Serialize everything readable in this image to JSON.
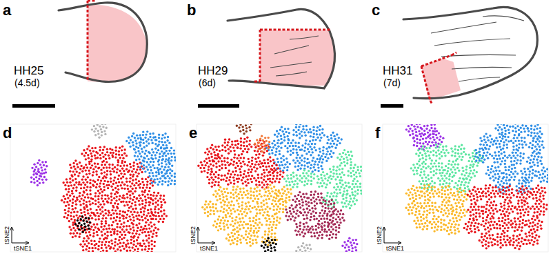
{
  "panels": [
    {
      "label": "a",
      "stage": "HH25",
      "age": "(4.5d)"
    },
    {
      "label": "b",
      "stage": "HH29",
      "age": "(6d)"
    },
    {
      "label": "c",
      "stage": "HH31",
      "age": "(7d)"
    }
  ],
  "chart_data": [
    {
      "type": "scatter",
      "title": "d",
      "x_label": "tSNE1",
      "y_label": "tSNE2",
      "xlim": [
        0,
        100
      ],
      "ylim": [
        0,
        100
      ],
      "tick_labels": false,
      "grid": false,
      "series": [
        {
          "color": "#e8161c",
          "x": [
            48,
            57,
            66,
            40,
            49,
            58,
            67,
            76,
            37,
            46,
            55,
            64,
            73,
            82,
            36,
            45,
            54,
            63,
            72,
            81,
            89,
            37,
            46,
            55,
            64,
            73,
            82,
            90,
            40,
            49,
            58,
            67,
            76,
            85,
            47,
            56,
            65,
            74,
            83
          ],
          "y": [
            77,
            77,
            77,
            65,
            65,
            65,
            65,
            65,
            53,
            53,
            53,
            53,
            53,
            53,
            41,
            41,
            41,
            41,
            41,
            41,
            41,
            29,
            29,
            29,
            29,
            29,
            29,
            29,
            17,
            17,
            17,
            17,
            17,
            17,
            5,
            5,
            5,
            5,
            5
          ]
        },
        {
          "color": "#2f8fe6",
          "x": [
            75,
            83,
            92,
            79,
            89,
            97,
            83,
            93,
            89,
            97
          ],
          "y": [
            87,
            89,
            87,
            77,
            77,
            76,
            68,
            67,
            58,
            58
          ]
        },
        {
          "color": "#b3b3b3",
          "x": [
            54
          ],
          "y": [
            96
          ]
        },
        {
          "color": "#9b30e6",
          "x": [
            18,
            17
          ],
          "y": [
            66,
            58
          ]
        },
        {
          "color": "#000000",
          "x": [
            44
          ],
          "y": [
            22
          ]
        }
      ]
    },
    {
      "type": "scatter",
      "title": "e",
      "x_label": "tSNE1",
      "y_label": "tSNE2",
      "xlim": [
        0,
        100
      ],
      "ylim": [
        0,
        100
      ],
      "tick_labels": false,
      "grid": false,
      "series": [
        {
          "color": "#2f8fe6",
          "x": [
            52,
            63,
            73,
            83,
            47,
            58,
            68,
            78,
            52,
            63,
            72
          ],
          "y": [
            92,
            95,
            93,
            87,
            81,
            82,
            82,
            77,
            69,
            70,
            68
          ]
        },
        {
          "color": "#5ee6a2",
          "x": [
            90,
            96,
            85,
            77,
            88,
            97,
            81,
            92,
            58,
            67
          ],
          "y": [
            74,
            63,
            62,
            56,
            50,
            50,
            41,
            40,
            56,
            58
          ]
        },
        {
          "color": "#e8161c",
          "x": [
            10,
            20,
            29,
            39,
            6,
            15,
            25,
            35,
            44,
            11,
            21,
            30,
            40,
            48
          ],
          "y": [
            78,
            83,
            84,
            81,
            67,
            70,
            71,
            69,
            68,
            57,
            58,
            58,
            56,
            60
          ]
        },
        {
          "color": "#fbb829",
          "x": [
            15,
            25,
            35,
            45,
            53,
            8,
            19,
            29,
            40,
            50,
            15,
            25,
            35,
            46,
            23,
            33,
            44
          ],
          "y": [
            45,
            46,
            45,
            46,
            45,
            34,
            34,
            34,
            34,
            36,
            22,
            22,
            22,
            24,
            11,
            11,
            11
          ]
        },
        {
          "color": "#a32a55",
          "x": [
            63,
            72,
            80,
            58,
            68,
            77,
            85,
            64,
            73,
            82
          ],
          "y": [
            41,
            42,
            35,
            30,
            30,
            25,
            27,
            18,
            16,
            16
          ]
        },
        {
          "color": "#9b30e6",
          "x": [
            93
          ],
          "y": [
            5
          ]
        },
        {
          "color": "#000000",
          "x": [
            44
          ],
          "y": [
            5
          ]
        },
        {
          "color": "#8c3b1f",
          "x": [
            29
          ],
          "y": [
            99
          ]
        },
        {
          "color": "#f27b3c",
          "x": [
            40
          ],
          "y": [
            85
          ]
        },
        {
          "color": "#b3b3b3",
          "x": [
            65
          ],
          "y": [
            1
          ]
        }
      ]
    },
    {
      "type": "scatter",
      "title": "f",
      "x_label": "tSNE1",
      "y_label": "tSNE2",
      "xlim": [
        0,
        100
      ],
      "ylim": [
        0,
        100
      ],
      "tick_labels": false,
      "grid": false,
      "series": [
        {
          "color": "#9b30e6",
          "x": [
            19,
            28,
            23,
            32
          ],
          "y": [
            96,
            96,
            86,
            88
          ]
        },
        {
          "color": "#5ee6a2",
          "x": [
            25,
            35,
            46,
            56,
            22,
            32,
            42,
            52,
            27,
            38,
            48
          ],
          "y": [
            77,
            79,
            78,
            73,
            65,
            66,
            66,
            62,
            54,
            56,
            52
          ]
        },
        {
          "color": "#2f8fe6",
          "x": [
            73,
            83,
            92,
            63,
            72,
            82,
            93,
            60,
            71,
            81,
            92,
            67,
            77,
            88,
            98,
            73,
            85
          ],
          "y": [
            97,
            98,
            94,
            86,
            86,
            86,
            84,
            76,
            74,
            74,
            72,
            62,
            62,
            61,
            60,
            52,
            51
          ]
        },
        {
          "color": "#fbb829",
          "x": [
            19,
            28,
            38,
            47,
            19,
            28,
            38,
            46,
            24,
            33,
            42
          ],
          "y": [
            46,
            47,
            46,
            43,
            34,
            35,
            34,
            31,
            23,
            22,
            19
          ]
        },
        {
          "color": "#e8161c",
          "x": [
            56,
            65,
            75,
            85,
            94,
            56,
            65,
            75,
            85,
            95,
            54,
            64,
            73,
            82,
            92,
            63,
            72,
            81,
            90
          ],
          "y": [
            45,
            47,
            46,
            45,
            46,
            32,
            34,
            34,
            34,
            34,
            20,
            22,
            22,
            22,
            22,
            9,
            9,
            8,
            11
          ]
        }
      ]
    }
  ]
}
